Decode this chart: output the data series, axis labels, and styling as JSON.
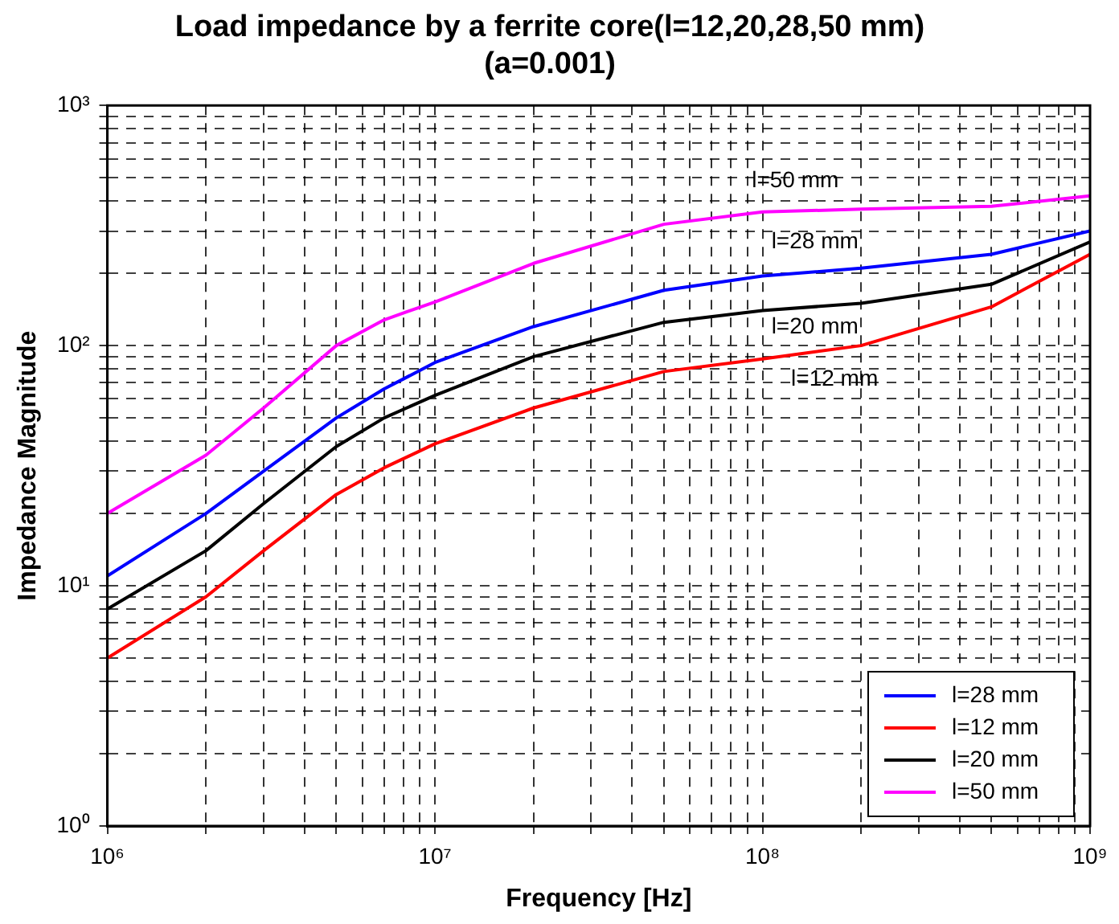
{
  "chart_data": {
    "type": "line",
    "title": "Load impedance by a ferrite core(l=12,20,28,50 mm)",
    "subtitle": "(a=0.001)",
    "xlabel": "Frequency [Hz]",
    "ylabel": "Impedance Magnitude",
    "x": [
      1000000,
      2000000,
      3000000,
      5000000,
      7000000,
      10000000,
      20000000,
      50000000,
      100000000,
      200000000,
      500000000,
      1000000000
    ],
    "series": [
      {
        "name": "l=28 mm",
        "color": "#0000ff",
        "values": [
          11,
          20,
          30,
          50,
          66,
          85,
          120,
          170,
          195,
          210,
          240,
          300
        ]
      },
      {
        "name": "l=12 mm",
        "color": "#ff0000",
        "values": [
          5,
          9,
          14,
          24,
          31,
          39,
          55,
          78,
          88,
          100,
          145,
          240
        ]
      },
      {
        "name": "l=20 mm",
        "color": "#000000",
        "values": [
          8,
          14,
          22,
          38,
          50,
          62,
          90,
          125,
          140,
          150,
          180,
          270
        ]
      },
      {
        "name": "l=50 mm",
        "color": "#ff00ff",
        "values": [
          20,
          35,
          55,
          100,
          128,
          152,
          220,
          320,
          360,
          370,
          380,
          420
        ]
      }
    ],
    "log": "xy",
    "xlim": [
      1000000,
      1000000000
    ],
    "ylim": [
      1,
      1000
    ],
    "xticks": [
      {
        "value": 1000000,
        "label": "10⁶"
      },
      {
        "value": 2000000,
        "label": null
      },
      {
        "value": 3000000,
        "label": null
      },
      {
        "value": 4000000,
        "label": null
      },
      {
        "value": 5000000,
        "label": null
      },
      {
        "value": 6000000,
        "label": null
      },
      {
        "value": 7000000,
        "label": null
      },
      {
        "value": 8000000,
        "label": null
      },
      {
        "value": 9000000,
        "label": null
      },
      {
        "value": 10000000,
        "label": "10⁷"
      },
      {
        "value": 20000000,
        "label": null
      },
      {
        "value": 30000000,
        "label": null
      },
      {
        "value": 40000000,
        "label": null
      },
      {
        "value": 50000000,
        "label": null
      },
      {
        "value": 60000000,
        "label": null
      },
      {
        "value": 70000000,
        "label": null
      },
      {
        "value": 80000000,
        "label": null
      },
      {
        "value": 90000000,
        "label": null
      },
      {
        "value": 100000000,
        "label": "10⁸"
      },
      {
        "value": 200000000,
        "label": null
      },
      {
        "value": 300000000,
        "label": null
      },
      {
        "value": 400000000,
        "label": null
      },
      {
        "value": 500000000,
        "label": null
      },
      {
        "value": 600000000,
        "label": null
      },
      {
        "value": 700000000,
        "label": null
      },
      {
        "value": 800000000,
        "label": null
      },
      {
        "value": 900000000,
        "label": null
      },
      {
        "value": 1000000000,
        "label": "10⁹"
      }
    ],
    "yticks": [
      {
        "value": 1,
        "label": "10⁰"
      },
      {
        "value": 2,
        "label": null
      },
      {
        "value": 3,
        "label": null
      },
      {
        "value": 4,
        "label": null
      },
      {
        "value": 5,
        "label": null
      },
      {
        "value": 6,
        "label": null
      },
      {
        "value": 7,
        "label": null
      },
      {
        "value": 8,
        "label": null
      },
      {
        "value": 9,
        "label": null
      },
      {
        "value": 10,
        "label": "10¹"
      },
      {
        "value": 20,
        "label": null
      },
      {
        "value": 30,
        "label": null
      },
      {
        "value": 40,
        "label": null
      },
      {
        "value": 50,
        "label": null
      },
      {
        "value": 60,
        "label": null
      },
      {
        "value": 70,
        "label": null
      },
      {
        "value": 80,
        "label": null
      },
      {
        "value": 90,
        "label": null
      },
      {
        "value": 100,
        "label": "10²"
      },
      {
        "value": 200,
        "label": null
      },
      {
        "value": 300,
        "label": null
      },
      {
        "value": 400,
        "label": null
      },
      {
        "value": 500,
        "label": null
      },
      {
        "value": 600,
        "label": null
      },
      {
        "value": 700,
        "label": null
      },
      {
        "value": 800,
        "label": null
      },
      {
        "value": 900,
        "label": null
      },
      {
        "value": 1000,
        "label": "10³"
      }
    ],
    "annotations": [
      "l=50 mm",
      "l=28 mm",
      "l=20 mm",
      "l=12 mm"
    ],
    "grid": true,
    "legend": "bottom right",
    "marker": "none",
    "line_style": "solid"
  }
}
